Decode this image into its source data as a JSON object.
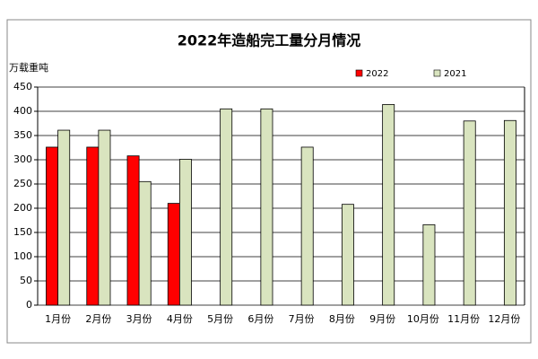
{
  "chart_data": {
    "type": "bar",
    "title": "2022年造船完工量分月情况",
    "y_label": "万载重吨",
    "categories": [
      "1月份",
      "2月份",
      "3月份",
      "4月份",
      "5月份",
      "6月份",
      "7月份",
      "8月份",
      "9月份",
      "10月份",
      "11月份",
      "12月份"
    ],
    "series": [
      {
        "name": "2022",
        "color": "#ff0000",
        "values": [
          326,
          326,
          308,
          210,
          null,
          null,
          null,
          null,
          null,
          null,
          null,
          null
        ]
      },
      {
        "name": "2021",
        "color": "#d9e4bf",
        "values": [
          361,
          361,
          255,
          301,
          405,
          405,
          326,
          208,
          414,
          166,
          380,
          381
        ]
      }
    ],
    "ylim": [
      0,
      450
    ],
    "yticks": [
      0,
      50,
      100,
      150,
      200,
      250,
      300,
      350,
      400,
      450
    ],
    "grid": true,
    "legend": "top-right"
  }
}
